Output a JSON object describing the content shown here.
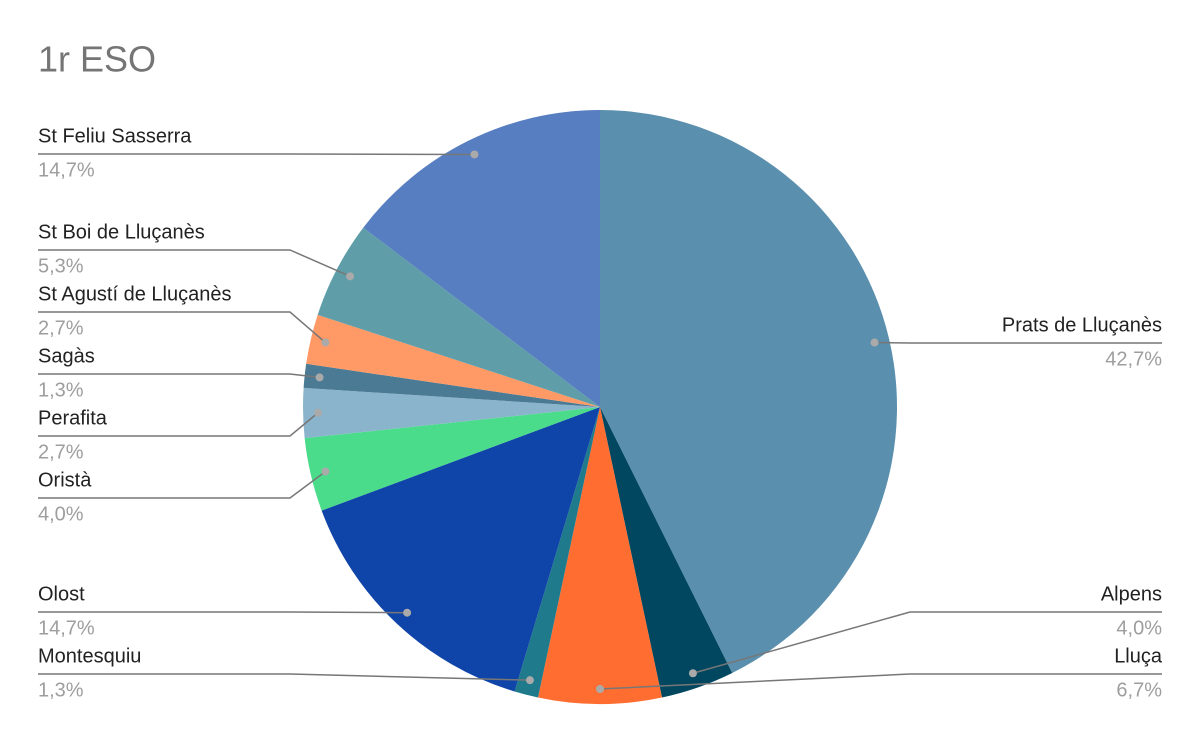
{
  "chart_data": {
    "type": "pie",
    "title": "1r ESO",
    "categories": [
      "Prats de Lluçanès",
      "Alpens",
      "Lluça",
      "Montesquiu",
      "Olost",
      "Oristà",
      "Perafita",
      "Sagàs",
      "St Agustí de Lluçanès",
      "St Boi de Lluçanès",
      "St Feliu Sasserra"
    ],
    "values": [
      42.7,
      4.0,
      6.7,
      1.3,
      14.7,
      4.0,
      2.7,
      1.3,
      2.7,
      5.3,
      14.7
    ],
    "value_labels": [
      "42,7%",
      "4,0%",
      "6,7%",
      "1,3%",
      "14,7%",
      "4,0%",
      "2,7%",
      "1,3%",
      "2,7%",
      "5,3%",
      "14,7%"
    ],
    "colors": [
      "#5b8fae",
      "#00475f",
      "#ff6d31",
      "#1f7a8c",
      "#0f44a8",
      "#4adc8a",
      "#8ab4cb",
      "#4a7a94",
      "#ff9966",
      "#5f9ea8",
      "#577ec0"
    ]
  }
}
